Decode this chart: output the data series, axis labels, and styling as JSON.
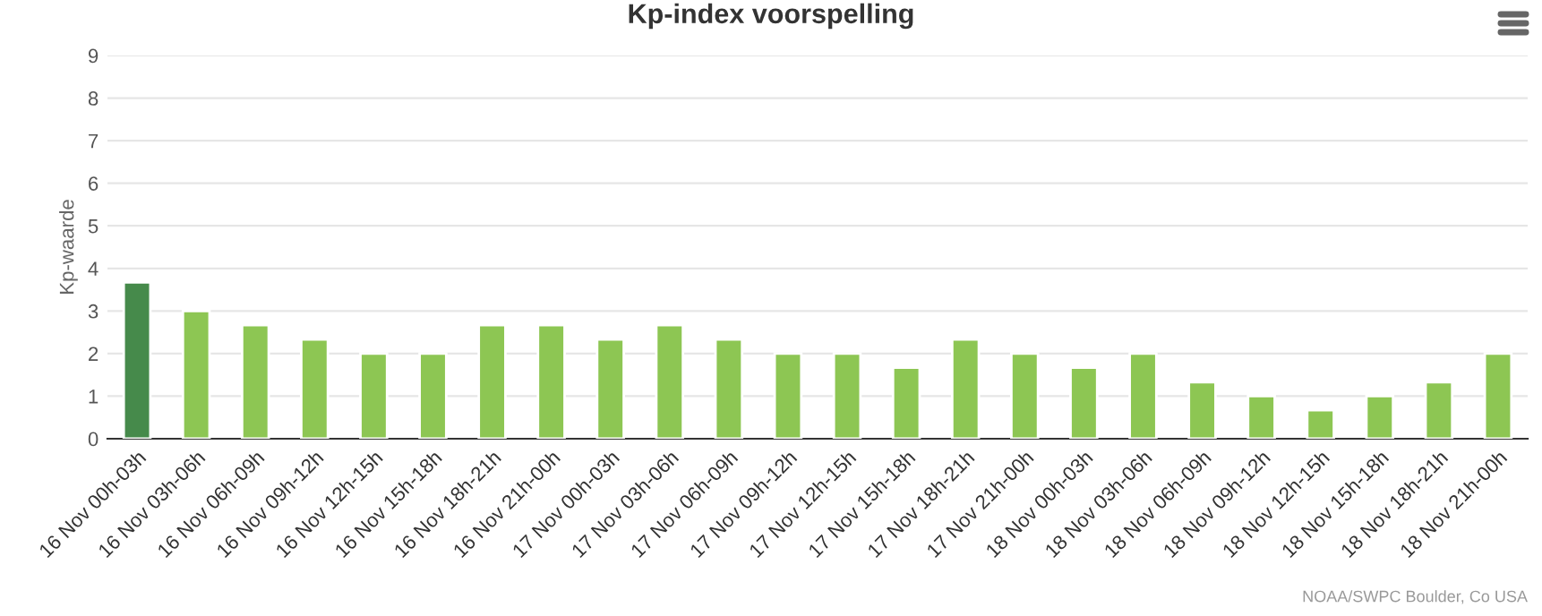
{
  "chart_data": {
    "type": "bar",
    "title": "Kp-index voorspelling",
    "ylabel": "Kp-waarde",
    "categories": [
      "16 Nov 00h-03h",
      "16 Nov 03h-06h",
      "16 Nov 06h-09h",
      "16 Nov 09h-12h",
      "16 Nov 12h-15h",
      "16 Nov 15h-18h",
      "16 Nov 18h-21h",
      "16 Nov 21h-00h",
      "17 Nov 00h-03h",
      "17 Nov 03h-06h",
      "17 Nov 06h-09h",
      "17 Nov 09h-12h",
      "17 Nov 12h-15h",
      "17 Nov 15h-18h",
      "17 Nov 18h-21h",
      "17 Nov 21h-00h",
      "18 Nov 00h-03h",
      "18 Nov 03h-06h",
      "18 Nov 06h-09h",
      "18 Nov 09h-12h",
      "18 Nov 12h-15h",
      "18 Nov 15h-18h",
      "18 Nov 18h-21h",
      "18 Nov 21h-00h"
    ],
    "values": [
      3.67,
      3.0,
      2.67,
      2.33,
      2.0,
      2.0,
      2.67,
      2.67,
      2.33,
      2.67,
      2.33,
      2.0,
      2.0,
      1.67,
      2.33,
      2.0,
      1.67,
      2.0,
      1.33,
      1.0,
      0.67,
      1.0,
      1.33,
      2.0
    ],
    "colors": [
      "#468a4b",
      "#8dc653",
      "#8dc653",
      "#8dc653",
      "#8dc653",
      "#8dc653",
      "#8dc653",
      "#8dc653",
      "#8dc653",
      "#8dc653",
      "#8dc653",
      "#8dc653",
      "#8dc653",
      "#8dc653",
      "#8dc653",
      "#8dc653",
      "#8dc653",
      "#8dc653",
      "#8dc653",
      "#8dc653",
      "#8dc653",
      "#8dc653",
      "#8dc653",
      "#8dc653"
    ],
    "ylim": [
      0,
      9
    ],
    "yticks": [
      0,
      1,
      2,
      3,
      4,
      5,
      6,
      7,
      8,
      9
    ],
    "grid": "y",
    "annotations": [
      "NOAA/SWPC Boulder, Co USA"
    ]
  }
}
